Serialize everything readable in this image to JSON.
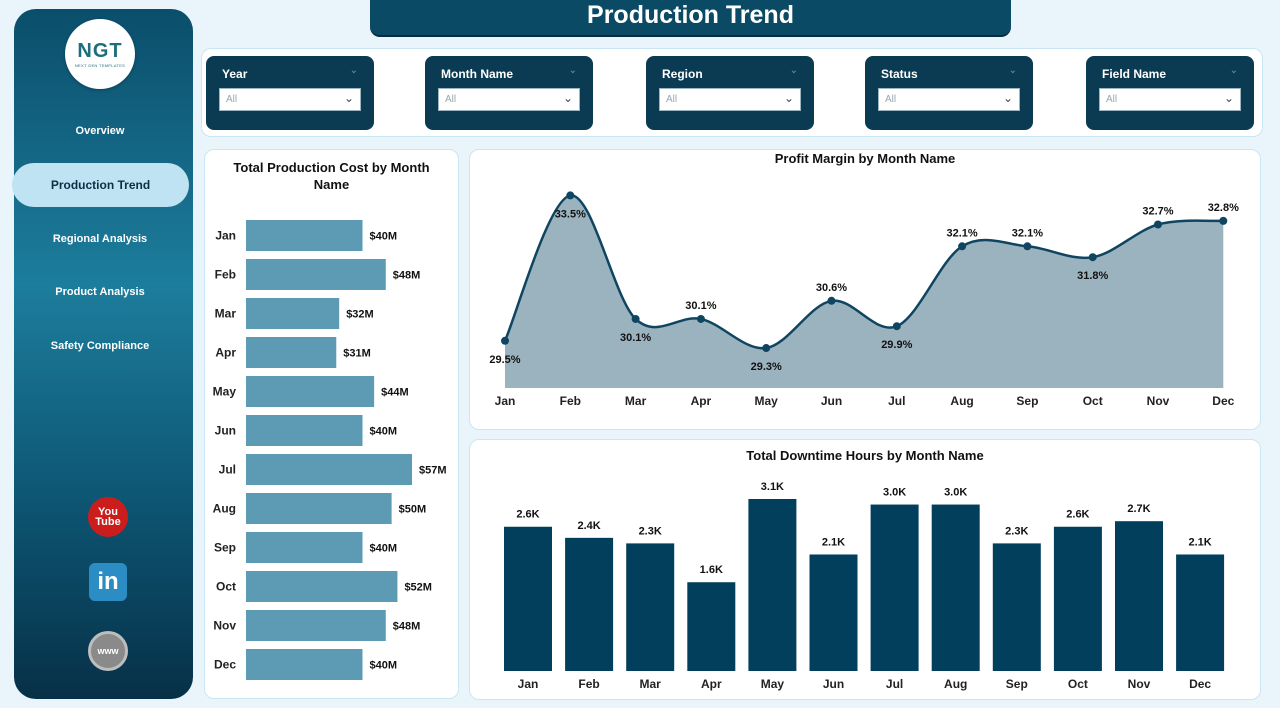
{
  "title": "Production Trend",
  "logo": {
    "main": "NGT",
    "sub": "NEXT GEN TEMPLATES"
  },
  "nav": [
    {
      "label": "Overview",
      "active": false
    },
    {
      "label": "Production Trend",
      "active": true
    },
    {
      "label": "Regional Analysis",
      "active": false
    },
    {
      "label": "Product Analysis",
      "active": false
    },
    {
      "label": "Safety Compliance",
      "active": false
    }
  ],
  "social": [
    {
      "name": "youtube-icon",
      "text_top": "You",
      "text_bottom": "Tube"
    },
    {
      "name": "linkedin-icon",
      "text": "in"
    },
    {
      "name": "website-icon",
      "text": "www"
    }
  ],
  "filters": [
    {
      "label": "Year",
      "value": "All"
    },
    {
      "label": "Month Name",
      "value": "All"
    },
    {
      "label": "Region",
      "value": "All"
    },
    {
      "label": "Status",
      "value": "All"
    },
    {
      "label": "Field Name",
      "value": "All"
    }
  ],
  "colors": {
    "bar_cost": "#5d9bb5",
    "area_fill": "#9bb3bf",
    "line": "#0f4561",
    "bar_downtime": "#013f5c"
  },
  "chart_data": [
    {
      "type": "bar",
      "orientation": "horizontal",
      "title": "Total Production Cost by Month Name",
      "categories": [
        "Jan",
        "Feb",
        "Mar",
        "Apr",
        "May",
        "Jun",
        "Jul",
        "Aug",
        "Sep",
        "Oct",
        "Nov",
        "Dec"
      ],
      "values": [
        40,
        48,
        32,
        31,
        44,
        40,
        57,
        50,
        40,
        52,
        48,
        40
      ],
      "labels": [
        "$40M",
        "$48M",
        "$32M",
        "$31M",
        "$44M",
        "$40M",
        "$57M",
        "$50M",
        "$40M",
        "$52M",
        "$48M",
        "$40M"
      ],
      "unit": "$M"
    },
    {
      "type": "area",
      "title": "Profit Margin by Month Name",
      "categories": [
        "Jan",
        "Feb",
        "Mar",
        "Apr",
        "May",
        "Jun",
        "Jul",
        "Aug",
        "Sep",
        "Oct",
        "Nov",
        "Dec"
      ],
      "values": [
        29.5,
        33.5,
        30.1,
        30.1,
        29.3,
        30.6,
        29.9,
        32.1,
        32.1,
        31.8,
        32.7,
        32.8
      ],
      "labels": [
        "29.5%",
        "33.5%",
        "30.1%",
        "30.1%",
        "29.3%",
        "30.6%",
        "29.9%",
        "32.1%",
        "32.1%",
        "31.8%",
        "32.7%",
        "32.8%"
      ],
      "label_position": [
        "below",
        "below",
        "below",
        "above",
        "below",
        "above",
        "below",
        "above",
        "above",
        "below",
        "above",
        "above"
      ],
      "ylim": [
        28.2,
        34.2
      ]
    },
    {
      "type": "bar",
      "orientation": "vertical",
      "title": "Total Downtime Hours by Month Name",
      "categories": [
        "Jan",
        "Feb",
        "Mar",
        "Apr",
        "May",
        "Jun",
        "Jul",
        "Aug",
        "Sep",
        "Oct",
        "Nov",
        "Dec"
      ],
      "values": [
        2.6,
        2.4,
        2.3,
        1.6,
        3.1,
        2.1,
        3.0,
        3.0,
        2.3,
        2.6,
        2.7,
        2.1
      ],
      "labels": [
        "2.6K",
        "2.4K",
        "2.3K",
        "1.6K",
        "3.1K",
        "2.1K",
        "3.0K",
        "3.0K",
        "2.3K",
        "2.6K",
        "2.7K",
        "2.1K"
      ],
      "unit": "K hours"
    }
  ]
}
